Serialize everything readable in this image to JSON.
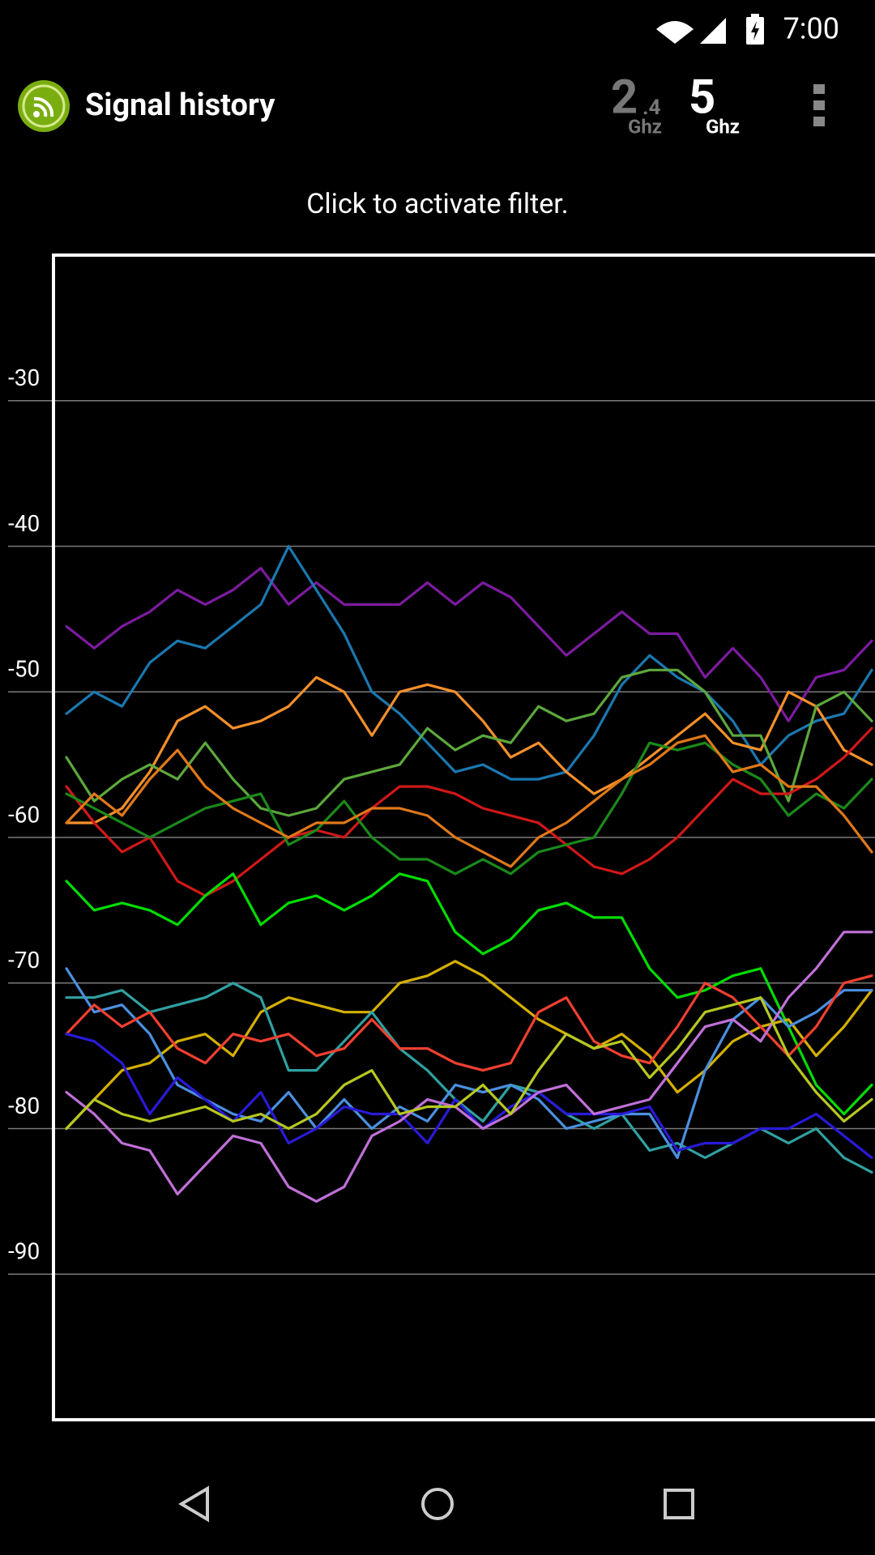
{
  "status_bar": {
    "time": "7:00"
  },
  "app_bar": {
    "title": "Signal history",
    "bands": [
      {
        "main": "2",
        "sub": ".4",
        "unit": "Ghz"
      },
      {
        "main": "5",
        "unit": "Ghz"
      }
    ]
  },
  "hint": "Click to activate filter.",
  "chart_data": {
    "type": "line",
    "ylim": [
      -100,
      -20
    ],
    "yticks": [
      -90,
      -80,
      -70,
      -60,
      -50,
      -40,
      -30
    ],
    "grid": true,
    "series": [
      {
        "color": "#7d1ba0",
        "values": [
          -45.5,
          -47,
          -45.5,
          -44.5,
          -43,
          -44,
          -43,
          -41.5,
          -44,
          -42.5,
          -44,
          -44,
          -44,
          -42.5,
          -44,
          -42.5,
          -43.5,
          -45.5,
          -47.5,
          -46,
          -44.5,
          -46,
          -46,
          -49,
          -47,
          -49,
          -52,
          -49,
          -48.5,
          -46.5
        ]
      },
      {
        "color": "#1a78b0",
        "values": [
          -51.5,
          -50,
          -51,
          -48,
          -46.5,
          -47,
          -45.5,
          -44,
          -40,
          -43,
          -46,
          -50,
          -51.5,
          -53.5,
          -55.5,
          -55,
          -56,
          -56,
          -55.5,
          -53,
          -49.5,
          -47.5,
          -49,
          -50,
          -52,
          -55,
          -53,
          -52,
          -51.5,
          -48.5
        ]
      },
      {
        "color": "#f5902a",
        "values": [
          -59,
          -59,
          -58,
          -55.5,
          -52,
          -51,
          -52.5,
          -52,
          -51,
          -49,
          -50,
          -53,
          -50,
          -49.5,
          -50,
          -52,
          -54.5,
          -53.5,
          -55.5,
          -57,
          -56,
          -54.5,
          -53,
          -51.5,
          -53.5,
          -54,
          -50,
          -51,
          -54,
          -55
        ]
      },
      {
        "color": "#5ca83c",
        "values": [
          -54.5,
          -57.5,
          -56,
          -55,
          -56,
          -53.5,
          -56,
          -58,
          -58.5,
          -58,
          -56,
          -55.5,
          -55,
          -52.5,
          -54,
          -53,
          -53.5,
          -51,
          -52,
          -51.5,
          -49,
          -48.5,
          -48.5,
          -50,
          -53,
          -53,
          -57.5,
          -51,
          -50,
          -52
        ]
      },
      {
        "color": "#d01818",
        "values": [
          -56.5,
          -59,
          -61,
          -60,
          -63,
          -64,
          -63,
          -61.5,
          -60,
          -59.5,
          -60,
          -58,
          -56.5,
          -56.5,
          -57,
          -58,
          -58.5,
          -59,
          -60.5,
          -62,
          -62.5,
          -61.5,
          -60,
          -58,
          -56,
          -57,
          -57,
          -56,
          -54.5,
          -52.5
        ]
      },
      {
        "color": "#1a8a1a",
        "values": [
          -57,
          -58,
          -59,
          -60,
          -59,
          -58,
          -57.5,
          -57,
          -60.5,
          -59.5,
          -57.5,
          -60,
          -61.5,
          -61.5,
          -62.5,
          -61.5,
          -62.5,
          -61,
          -60.5,
          -60,
          -57,
          -53.5,
          -54,
          -53.5,
          -55,
          -56,
          -58.5,
          -57,
          -58,
          -56
        ]
      },
      {
        "color": "#e07818",
        "values": [
          -59,
          -57,
          -58.5,
          -56,
          -54,
          -56.5,
          -58,
          -59,
          -60,
          -59,
          -59,
          -58,
          -58,
          -58.5,
          -60,
          -61,
          -62,
          -60,
          -59,
          -57.5,
          -56,
          -55,
          -53.5,
          -53,
          -55.5,
          -55,
          -56.5,
          -56.5,
          -58.5,
          -61
        ]
      },
      {
        "color": "#00dd00",
        "values": [
          -63,
          -65,
          -64.5,
          -65,
          -66,
          -64,
          -62.5,
          -66,
          -64.5,
          -64,
          -65,
          -64,
          -62.5,
          -63,
          -66.5,
          -68,
          -67,
          -65,
          -64.5,
          -65.5,
          -65.5,
          -69,
          -71,
          -70.5,
          -69.5,
          -69,
          -73,
          -77,
          -79,
          -77
        ]
      },
      {
        "color": "#d4b000",
        "values": [
          -80,
          -78,
          -76,
          -75.5,
          -74,
          -73.5,
          -75,
          -72,
          -71,
          -71.5,
          -72,
          -72,
          -70,
          -69.5,
          -68.5,
          -69.5,
          -71,
          -72.5,
          -73.5,
          -74.5,
          -73.5,
          -75,
          -77.5,
          -76,
          -74,
          -73,
          -72.5,
          -75,
          -73,
          -70.5
        ]
      },
      {
        "color": "#30a0a0",
        "values": [
          -71,
          -71,
          -70.5,
          -72,
          -71.5,
          -71,
          -70,
          -71,
          -76,
          -76,
          -74,
          -72,
          -74.5,
          -76,
          -78,
          -79.5,
          -77,
          -77.5,
          -79,
          -80,
          -79,
          -81.5,
          -81,
          -82,
          -81,
          -80,
          -81,
          -80,
          -82,
          -83
        ]
      },
      {
        "color": "#4a90e0",
        "values": [
          -69,
          -72,
          -71.5,
          -73.5,
          -77,
          -78,
          -79,
          -79.5,
          -77.5,
          -80,
          -78,
          -80,
          -78.5,
          -79.5,
          -77,
          -77.5,
          -77,
          -78,
          -80,
          -79.5,
          -79,
          -79,
          -82,
          -76,
          -72.5,
          -71,
          -73,
          -72,
          -70.5,
          -70.5
        ]
      },
      {
        "color": "#f04030",
        "values": [
          -73.5,
          -71.5,
          -73,
          -72,
          -74.5,
          -75.5,
          -73.5,
          -74,
          -73.5,
          -75,
          -74.5,
          -72.5,
          -74.5,
          -74.5,
          -75.5,
          -76,
          -75.5,
          -72,
          -71,
          -74,
          -75,
          -75.5,
          -73,
          -70,
          -71,
          -73,
          -75,
          -73,
          -70,
          -69.5
        ]
      },
      {
        "color": "#2a1ad8",
        "values": [
          -73.5,
          -74,
          -75.5,
          -79,
          -76.5,
          -78,
          -79.5,
          -77.5,
          -81,
          -80,
          -78.5,
          -79,
          -79,
          -81,
          -78,
          -80,
          -78.5,
          -77.5,
          -79,
          -79,
          -79,
          -78.5,
          -81.5,
          -81,
          -81,
          -80,
          -80,
          -79,
          -80.5,
          -82
        ]
      },
      {
        "color": "#c070d8",
        "values": [
          -77.5,
          -79,
          -81,
          -81.5,
          -84.5,
          -82.5,
          -80.5,
          -81,
          -84,
          -85,
          -84,
          -80.5,
          -79.5,
          -78,
          -78.5,
          -80,
          -79,
          -77.5,
          -77,
          -79,
          -78.5,
          -78,
          -75.5,
          -73,
          -72.5,
          -74,
          -71,
          -69,
          -66.5,
          -66.5
        ]
      },
      {
        "color": "#b8c820",
        "values": [
          -80,
          -78,
          -79,
          -79.5,
          -79,
          -78.5,
          -79.5,
          -79,
          -80,
          -79,
          -77,
          -76,
          -79,
          -78.5,
          -78.5,
          -77,
          -79,
          -76,
          -73.5,
          -74.5,
          -74,
          -76.5,
          -74.5,
          -72,
          -71.5,
          -71,
          -75,
          -77.5,
          -79.5,
          -78
        ]
      }
    ]
  }
}
